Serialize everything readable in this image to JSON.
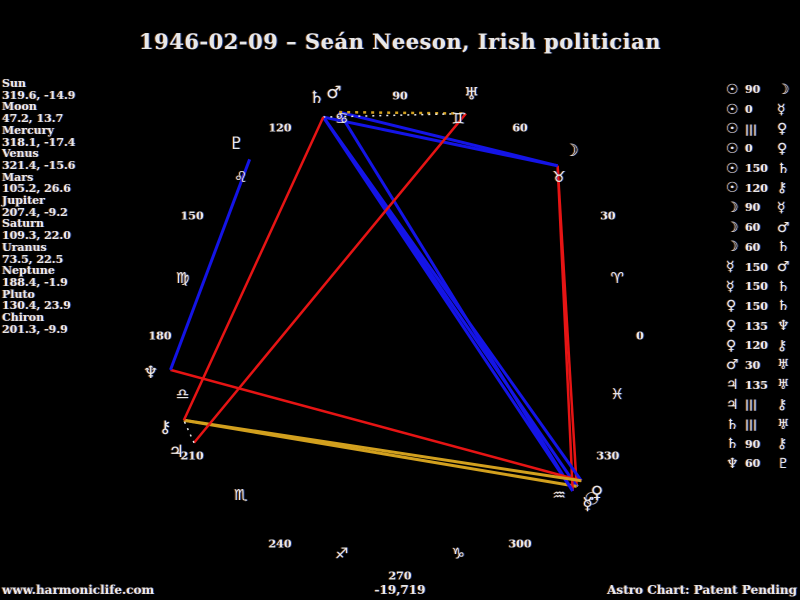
{
  "title": "1946-02-09 – Seán Neeson, Irish politician",
  "footer": {
    "left": "www.harmoniclife.com",
    "center": "-19,719",
    "right": "Astro Chart: Patent Pending"
  },
  "planets": [
    {
      "name": "Sun",
      "lon": "319.6",
      "dec": "-14.9"
    },
    {
      "name": "Moon",
      "lon": "47.2",
      "dec": "13.7"
    },
    {
      "name": "Mercury",
      "lon": "318.1",
      "dec": "-17.4"
    },
    {
      "name": "Venus",
      "lon": "321.4",
      "dec": "-15.6"
    },
    {
      "name": "Mars",
      "lon": "105.2",
      "dec": "26.6"
    },
    {
      "name": "Jupiter",
      "lon": "207.4",
      "dec": "-9.2"
    },
    {
      "name": "Saturn",
      "lon": "109.3",
      "dec": "22.0"
    },
    {
      "name": "Uranus",
      "lon": "73.5",
      "dec": "22.5"
    },
    {
      "name": "Neptune",
      "lon": "188.4",
      "dec": "-1.9"
    },
    {
      "name": "Pluto",
      "lon": "130.4",
      "dec": "23.9"
    },
    {
      "name": "Chiron",
      "lon": "201.3",
      "dec": "-9.9"
    }
  ],
  "glyphs": {
    "Sun": "☉",
    "Moon": "☽",
    "Mercury": "☿",
    "Venus": "♀",
    "Mars": "♂",
    "Jupiter": "♃",
    "Saturn": "♄",
    "Uranus": "♅",
    "Neptune": "♆",
    "Pluto": "♇",
    "Chiron": "⚷"
  },
  "aspects": [
    {
      "p1": "Sun",
      "angle": "90",
      "p2": "Moon"
    },
    {
      "p1": "Sun",
      "angle": "0",
      "p2": "Mercury"
    },
    {
      "p1": "Sun",
      "angle": "|||",
      "p2": "Venus"
    },
    {
      "p1": "Sun",
      "angle": "0",
      "p2": "Venus"
    },
    {
      "p1": "Sun",
      "angle": "150",
      "p2": "Saturn"
    },
    {
      "p1": "Sun",
      "angle": "120",
      "p2": "Chiron"
    },
    {
      "p1": "Moon",
      "angle": "90",
      "p2": "Mercury"
    },
    {
      "p1": "Moon",
      "angle": "60",
      "p2": "Mars"
    },
    {
      "p1": "Moon",
      "angle": "60",
      "p2": "Saturn"
    },
    {
      "p1": "Mercury",
      "angle": "150",
      "p2": "Mars"
    },
    {
      "p1": "Mercury",
      "angle": "150",
      "p2": "Saturn"
    },
    {
      "p1": "Venus",
      "angle": "150",
      "p2": "Saturn"
    },
    {
      "p1": "Venus",
      "angle": "135",
      "p2": "Neptune"
    },
    {
      "p1": "Venus",
      "angle": "120",
      "p2": "Chiron"
    },
    {
      "p1": "Mars",
      "angle": "30",
      "p2": "Uranus"
    },
    {
      "p1": "Jupiter",
      "angle": "135",
      "p2": "Uranus"
    },
    {
      "p1": "Jupiter",
      "angle": "|||",
      "p2": "Chiron"
    },
    {
      "p1": "Saturn",
      "angle": "|||",
      "p2": "Uranus"
    },
    {
      "p1": "Saturn",
      "angle": "90",
      "p2": "Chiron"
    },
    {
      "p1": "Neptune",
      "angle": "60",
      "p2": "Pluto"
    }
  ],
  "chart_data": {
    "type": "scatter",
    "projection": "zodiac-wheel-polar",
    "title": "1946-02-09 – Seán Neeson, Irish politician",
    "center": [
      400,
      336
    ],
    "radius": {
      "degree_labels": 240,
      "zodiac_glyphs": 225,
      "planet_glyphs": 252,
      "aspect_lines": 232
    },
    "degree_labels": [
      "0",
      "30",
      "60",
      "90",
      "120",
      "150",
      "180",
      "210",
      "240",
      "270",
      "300",
      "330"
    ],
    "zodiac": [
      {
        "name": "aries",
        "glyph": "♈"
      },
      {
        "name": "taurus",
        "glyph": "♉"
      },
      {
        "name": "gemini",
        "glyph": "♊"
      },
      {
        "name": "cancer",
        "glyph": "♋"
      },
      {
        "name": "leo",
        "glyph": "♌"
      },
      {
        "name": "virgo",
        "glyph": "♍"
      },
      {
        "name": "libra",
        "glyph": "♎"
      },
      {
        "name": "scorpio",
        "glyph": "♏"
      },
      {
        "name": "sagittarius",
        "glyph": "♐"
      },
      {
        "name": "capricorn",
        "glyph": "♑"
      },
      {
        "name": "aquarius",
        "glyph": "♒"
      },
      {
        "name": "pisces",
        "glyph": "♓"
      }
    ],
    "aspect_styles": {
      "0": null,
      "30": {
        "color": "#d2a01e",
        "width": 2.5,
        "dash": "3,5"
      },
      "60": {
        "color": "#1414e6",
        "width": 3
      },
      "90": {
        "color": "#e61414",
        "width": 2.5
      },
      "120": {
        "color": "#d2a01e",
        "width": 3
      },
      "135": {
        "color": "#e61414",
        "width": 2.5
      },
      "150": {
        "color": "#1414e6",
        "width": 3
      },
      "|||": {
        "color": "#e8e8e8",
        "width": 1.5,
        "dash": "2,5"
      }
    },
    "legend": "line colors: blue=sextile/quincunx, red=square/sesquiquadrate, gold=trine, dotted gold=semi-sextile, dotted white=parallel"
  }
}
